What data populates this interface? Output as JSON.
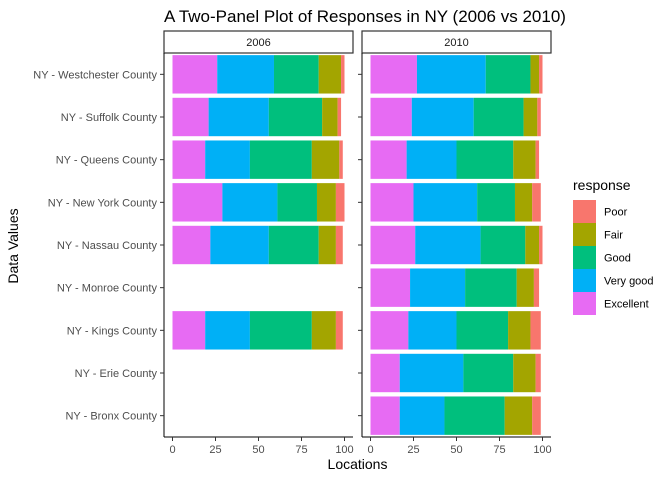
{
  "chart_data": {
    "type": "bar",
    "orientation": "horizontal",
    "stacked": true,
    "title": "A Two-Panel Plot of Responses in NY (2006 vs 2010)",
    "xlabel": "Locations",
    "ylabel": "Data Values",
    "xlim": [
      0,
      100
    ],
    "xticks": [
      0,
      25,
      50,
      75,
      100
    ],
    "categories": [
      "NY - Westchester County",
      "NY - Suffolk County",
      "NY - Queens County",
      "NY - New York County",
      "NY - Nassau County",
      "NY - Monroe County",
      "NY - Kings County",
      "NY - Erie County",
      "NY - Bronx County"
    ],
    "legend": {
      "title": "response",
      "position": "right",
      "order": [
        "Poor",
        "Fair",
        "Good",
        "Very good",
        "Excellent"
      ]
    },
    "stack_order": [
      "Excellent",
      "Very good",
      "Good",
      "Fair",
      "Poor"
    ],
    "colors": {
      "Poor": "#F8766D",
      "Fair": "#A3A500",
      "Good": "#00BF7D",
      "Very good": "#00B0F6",
      "Excellent": "#E76BF3"
    },
    "panels": [
      {
        "label": "2006",
        "data": {
          "NY - Westchester County": {
            "Excellent": 26,
            "Very good": 33,
            "Good": 26,
            "Fair": 13,
            "Poor": 2
          },
          "NY - Suffolk County": {
            "Excellent": 21,
            "Very good": 35,
            "Good": 31,
            "Fair": 9,
            "Poor": 2
          },
          "NY - Queens County": {
            "Excellent": 19,
            "Very good": 26,
            "Good": 36,
            "Fair": 16,
            "Poor": 2
          },
          "NY - New York County": {
            "Excellent": 29,
            "Very good": 32,
            "Good": 23,
            "Fair": 11,
            "Poor": 5
          },
          "NY - Nassau County": {
            "Excellent": 22,
            "Very good": 34,
            "Good": 29,
            "Fair": 10,
            "Poor": 4
          },
          "NY - Kings County": {
            "Excellent": 19,
            "Very good": 26,
            "Good": 36,
            "Fair": 14,
            "Poor": 4
          }
        }
      },
      {
        "label": "2010",
        "data": {
          "NY - Westchester County": {
            "Excellent": 27,
            "Very good": 40,
            "Good": 26,
            "Fair": 5,
            "Poor": 2
          },
          "NY - Suffolk County": {
            "Excellent": 24,
            "Very good": 36,
            "Good": 29,
            "Fair": 8,
            "Poor": 2
          },
          "NY - Queens County": {
            "Excellent": 21,
            "Very good": 29,
            "Good": 33,
            "Fair": 13,
            "Poor": 2
          },
          "NY - New York County": {
            "Excellent": 25,
            "Very good": 37,
            "Good": 22,
            "Fair": 10,
            "Poor": 5
          },
          "NY - Nassau County": {
            "Excellent": 26,
            "Very good": 38,
            "Good": 26,
            "Fair": 8,
            "Poor": 2
          },
          "NY - Monroe County": {
            "Excellent": 23,
            "Very good": 32,
            "Good": 30,
            "Fair": 10,
            "Poor": 3
          },
          "NY - Kings County": {
            "Excellent": 22,
            "Very good": 28,
            "Good": 30,
            "Fair": 13,
            "Poor": 6
          },
          "NY - Erie County": {
            "Excellent": 17,
            "Very good": 37,
            "Good": 29,
            "Fair": 13,
            "Poor": 3
          },
          "NY - Bronx County": {
            "Excellent": 17,
            "Very good": 26,
            "Good": 35,
            "Fair": 16,
            "Poor": 5
          }
        }
      }
    ]
  }
}
